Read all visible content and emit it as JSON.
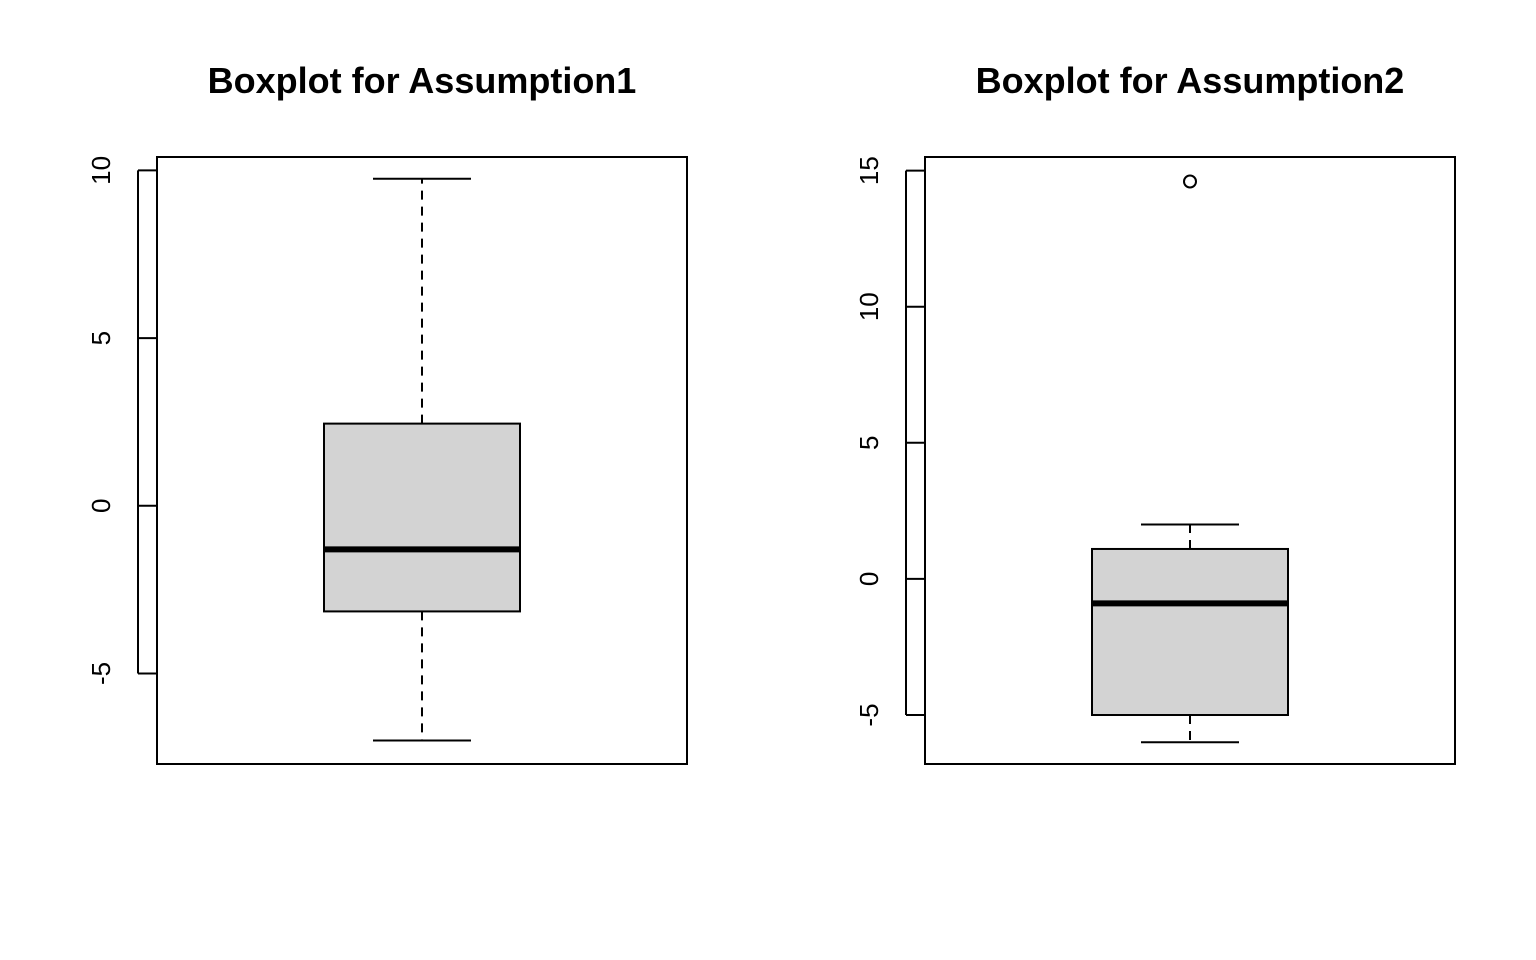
{
  "chart_data": [
    {
      "type": "boxplot",
      "title": "Boxplot for Assumption1",
      "xlabel": "",
      "ylabel": "",
      "ylim": [
        -7.7,
        10.4
      ],
      "yticks": [
        -5,
        0,
        5,
        10
      ],
      "ytick_labels": [
        "-5",
        "0",
        "5",
        "10"
      ],
      "box": {
        "whisker_low": -7.0,
        "q1": -3.15,
        "median": -1.3,
        "q3": 2.45,
        "whisker_high": 9.75
      },
      "outliers": [],
      "box_fill": "#d3d3d3"
    },
    {
      "type": "boxplot",
      "title": "Boxplot for Assumption2",
      "xlabel": "",
      "ylabel": "",
      "ylim": [
        -6.8,
        15.5
      ],
      "yticks": [
        -5,
        0,
        5,
        10,
        15
      ],
      "ytick_labels": [
        "-5",
        "0",
        "5",
        "10",
        "15"
      ],
      "box": {
        "whisker_low": -6.0,
        "q1": -5.0,
        "median": -0.9,
        "q3": 1.1,
        "whisker_high": 2.0
      },
      "outliers": [
        14.6
      ],
      "box_fill": "#d3d3d3"
    }
  ]
}
